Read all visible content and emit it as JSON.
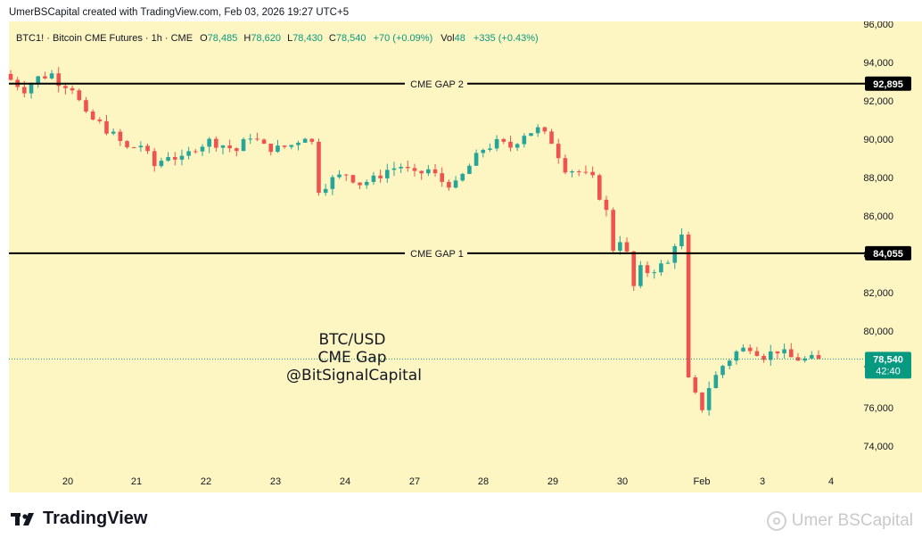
{
  "header": {
    "credit": "UmerBSCapital created with TradingView.com, Feb 03, 2026 19:27 UTC+5"
  },
  "legend": {
    "symbol": "BTC1! · Bitcoin CME Futures · 1h · CME",
    "o_label": "O",
    "o_value": "78,485",
    "h_label": "H",
    "h_value": "78,620",
    "l_label": "L",
    "l_value": "78,430",
    "c_label": "C",
    "c_value": "78,540",
    "change": "+70 (+0.09%)",
    "vol_label": "Vol",
    "vol_value": "48",
    "vol_change": "+335 (+0.43%)"
  },
  "annotation": {
    "line1": "BTC/USD",
    "line2": "CME Gap",
    "line3": "@BitSignalCapital"
  },
  "footer": {
    "brand": "TradingView",
    "watermark": "Umer BSCapital"
  },
  "colors": {
    "background": "#fdf5c2",
    "up": "#26a69a",
    "down": "#ef5350",
    "line": "#000000",
    "text": "#131722",
    "price_label_bg": "#089981"
  },
  "chart_data": {
    "type": "candlestick",
    "instrument": "BTC1! · Bitcoin CME Futures",
    "interval": "1h",
    "x_tick_labels": [
      "20",
      "21",
      "22",
      "23",
      "24",
      "27",
      "28",
      "29",
      "30",
      "Feb",
      "3",
      "4"
    ],
    "y_tick_values": [
      74000,
      76000,
      78000,
      80000,
      82000,
      84000,
      86000,
      88000,
      90000,
      92000,
      94000,
      96000
    ],
    "y_tick_labels": [
      "74,000",
      "76,000",
      "78,000",
      "80,000",
      "82,000",
      "84,000",
      "86,000",
      "88,000",
      "90,000",
      "92,000",
      "94,000",
      "96,000"
    ],
    "ylim": [
      73000,
      96200
    ],
    "horizontal_lines": [
      {
        "label": "CME GAP 2",
        "value": 92895,
        "value_label": "92,895"
      },
      {
        "label": "CME GAP 1",
        "value": 84055,
        "value_label": "84,055"
      }
    ],
    "last_price": {
      "value": 78540,
      "label": "78,540",
      "countdown": "42:40"
    },
    "price_path": [
      [
        0,
        93100
      ],
      [
        2,
        92600
      ],
      [
        4,
        93200
      ],
      [
        6,
        93400
      ],
      [
        7,
        93000
      ],
      [
        9,
        92700
      ],
      [
        11,
        91200
      ],
      [
        13,
        90800
      ],
      [
        15,
        90200
      ],
      [
        17,
        89500
      ],
      [
        19,
        89700
      ],
      [
        21,
        88600
      ],
      [
        23,
        89200
      ],
      [
        25,
        88900
      ],
      [
        27,
        89600
      ],
      [
        29,
        89900
      ],
      [
        31,
        89700
      ],
      [
        33,
        89400
      ],
      [
        35,
        90200
      ],
      [
        37,
        89600
      ],
      [
        39,
        89500
      ],
      [
        41,
        89700
      ],
      [
        43,
        90200
      ],
      [
        44,
        89800
      ],
      [
        45,
        87400
      ],
      [
        47,
        87900
      ],
      [
        49,
        88200
      ],
      [
        51,
        87700
      ],
      [
        53,
        87900
      ],
      [
        55,
        88400
      ],
      [
        57,
        88600
      ],
      [
        59,
        88100
      ],
      [
        61,
        88400
      ],
      [
        63,
        87800
      ],
      [
        65,
        87600
      ],
      [
        67,
        88600
      ],
      [
        69,
        89500
      ],
      [
        71,
        89800
      ],
      [
        73,
        89600
      ],
      [
        75,
        90300
      ],
      [
        77,
        90500
      ],
      [
        79,
        89900
      ],
      [
        81,
        88500
      ],
      [
        83,
        88300
      ],
      [
        85,
        87900
      ],
      [
        87,
        86200
      ],
      [
        88,
        84300
      ],
      [
        89,
        84800
      ],
      [
        90,
        84000
      ],
      [
        91,
        82300
      ],
      [
        92,
        83200
      ],
      [
        93,
        83100
      ],
      [
        95,
        83400
      ],
      [
        96,
        83500
      ],
      [
        97,
        84600
      ],
      [
        98,
        84900
      ],
      [
        99,
        77400
      ],
      [
        100,
        76600
      ],
      [
        101,
        76000
      ],
      [
        102,
        77100
      ],
      [
        104,
        78200
      ],
      [
        106,
        78900
      ],
      [
        108,
        79200
      ],
      [
        110,
        78700
      ],
      [
        112,
        79000
      ],
      [
        114,
        78600
      ],
      [
        116,
        78500
      ],
      [
        118,
        78540
      ]
    ]
  }
}
